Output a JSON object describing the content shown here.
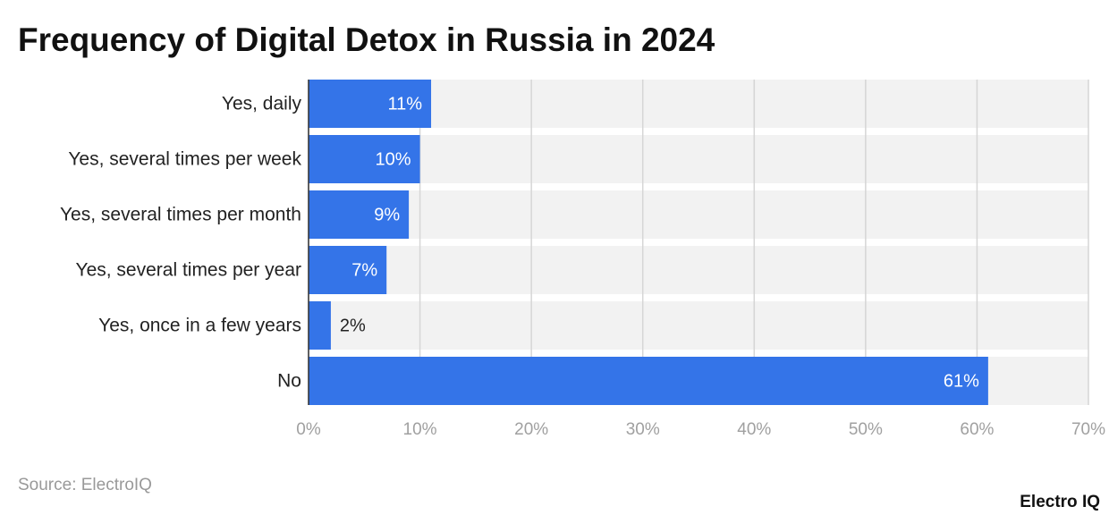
{
  "chart_data": {
    "type": "bar",
    "orientation": "horizontal",
    "title": "Frequency of Digital Detox in Russia in 2024",
    "categories": [
      "Yes, daily",
      "Yes, several times per week",
      "Yes, several times per month",
      "Yes, several times per year",
      "Yes, once in a few years",
      "No"
    ],
    "values": [
      11,
      10,
      9,
      7,
      2,
      61
    ],
    "value_labels": [
      "11%",
      "10%",
      "9%",
      "7%",
      "2%",
      "61%"
    ],
    "color": "#3474e8",
    "xlim": [
      0,
      70
    ],
    "xticks": [
      {
        "value": 0,
        "label": "0%"
      },
      {
        "value": 10,
        "label": "10%"
      },
      {
        "value": 20,
        "label": "20%"
      },
      {
        "value": 30,
        "label": "30%"
      },
      {
        "value": 40,
        "label": "40%"
      },
      {
        "value": 50,
        "label": "50%"
      },
      {
        "value": 60,
        "label": "60%"
      },
      {
        "value": 70,
        "label": "70%"
      }
    ],
    "grid": true,
    "source": "Source: ElectroIQ",
    "brand": "Electro IQ"
  }
}
